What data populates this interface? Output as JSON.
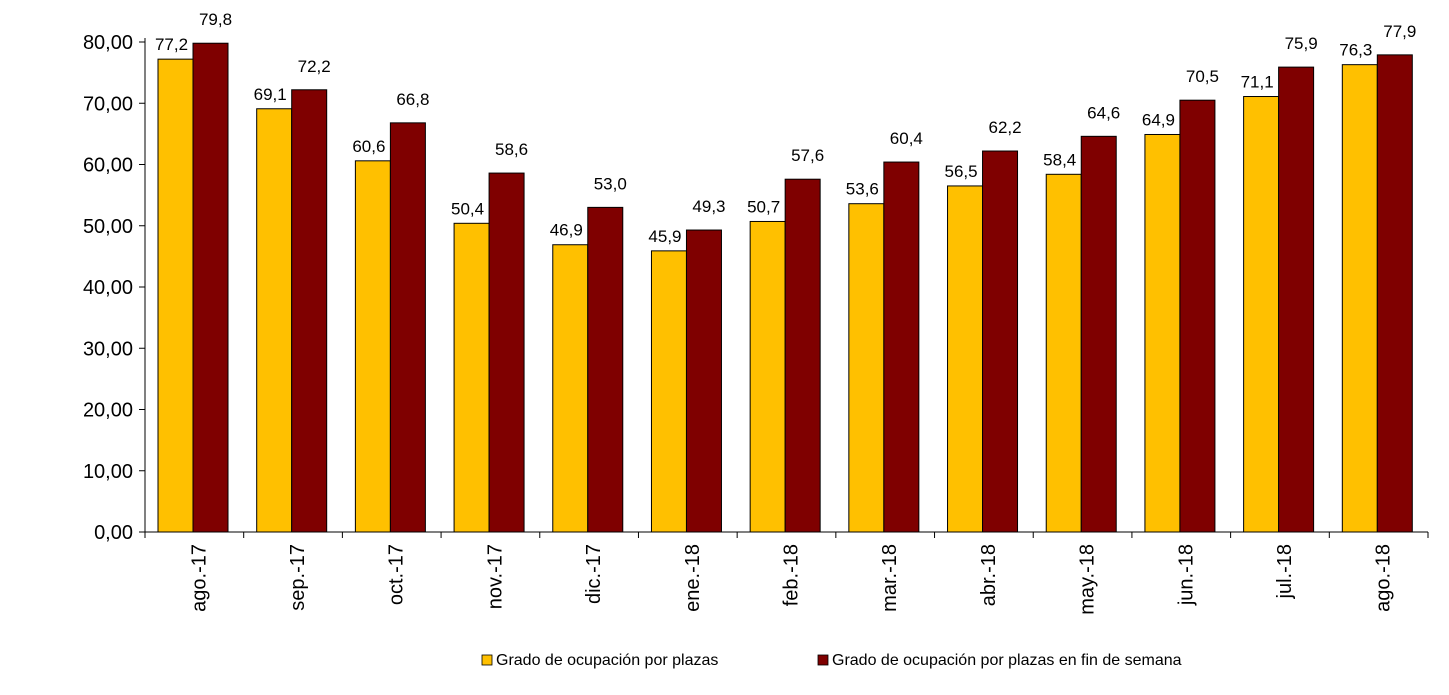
{
  "chart_data": {
    "type": "bar",
    "categories": [
      "ago.-17",
      "sep.-17",
      "oct.-17",
      "nov.-17",
      "dic.-17",
      "ene.-18",
      "feb.-18",
      "mar.-18",
      "abr.-18",
      "may.-18",
      "jun.-18",
      "jul.-18",
      "ago.-18"
    ],
    "series": [
      {
        "name": "Grado de ocupación por plazas",
        "color": "#FFC000",
        "values": [
          77.2,
          69.1,
          60.6,
          50.4,
          46.9,
          45.9,
          50.7,
          53.6,
          56.5,
          58.4,
          64.9,
          71.1,
          76.3
        ],
        "labels": [
          "77,2",
          "69,1",
          "60,6",
          "50,4",
          "46,9",
          "45,9",
          "50,7",
          "53,6",
          "56,5",
          "58,4",
          "64,9",
          "71,1",
          "76,3"
        ]
      },
      {
        "name": "Grado de ocupación por plazas en fin de semana",
        "color": "#7F0000",
        "values": [
          79.8,
          72.2,
          66.8,
          58.6,
          53.0,
          49.3,
          57.6,
          60.4,
          62.2,
          64.6,
          70.5,
          75.9,
          77.9
        ],
        "labels": [
          "79,8",
          "72,2",
          "66,8",
          "58,6",
          "53,0",
          "49,3",
          "57,6",
          "60,4",
          "62,2",
          "64,6",
          "70,5",
          "75,9",
          "77,9"
        ]
      }
    ],
    "ylim": [
      0,
      80
    ],
    "yticks": [
      0,
      10,
      20,
      30,
      40,
      50,
      60,
      70,
      80
    ],
    "ytick_labels": [
      "0,00",
      "10,00",
      "20,00",
      "30,00",
      "40,00",
      "50,00",
      "60,00",
      "70,00",
      "80,00"
    ],
    "grid": false,
    "legend_position": "bottom"
  }
}
